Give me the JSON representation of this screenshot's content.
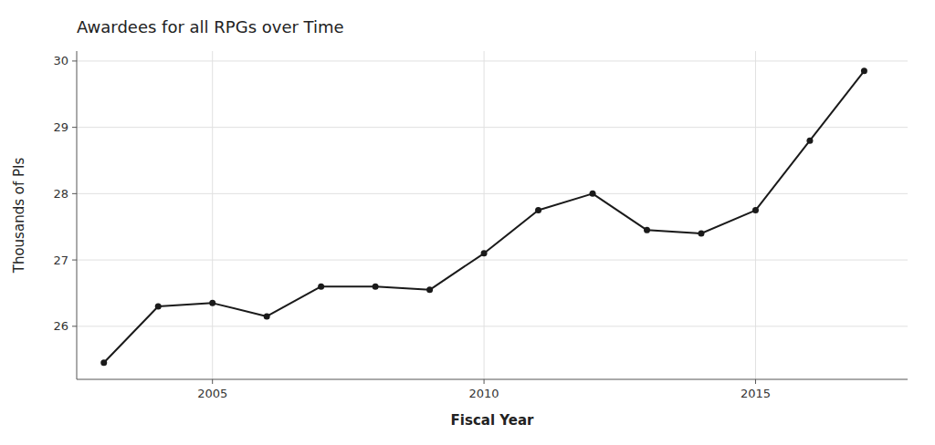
{
  "chart_data": {
    "type": "line",
    "title": "Awardees for all RPGs over Time",
    "x_label": "Fiscal Year",
    "y_label": "Thousands of PIs",
    "x": [
      2003,
      2004,
      2005,
      2006,
      2007,
      2008,
      2009,
      2010,
      2011,
      2012,
      2013,
      2014,
      2015,
      2016,
      2017
    ],
    "values": [
      25.45,
      26.3,
      26.35,
      26.15,
      26.6,
      26.6,
      26.55,
      27.1,
      27.75,
      28.0,
      27.45,
      27.4,
      27.75,
      28.8,
      29.85
    ],
    "xlim": [
      2002.5,
      2017.8
    ],
    "ylim": [
      25.2,
      30.15
    ],
    "xticks": [
      2005,
      2010,
      2015
    ],
    "yticks": [
      26,
      27,
      28,
      29,
      30
    ],
    "color": "#1a1a1a",
    "marker": "circle",
    "grid": true
  }
}
